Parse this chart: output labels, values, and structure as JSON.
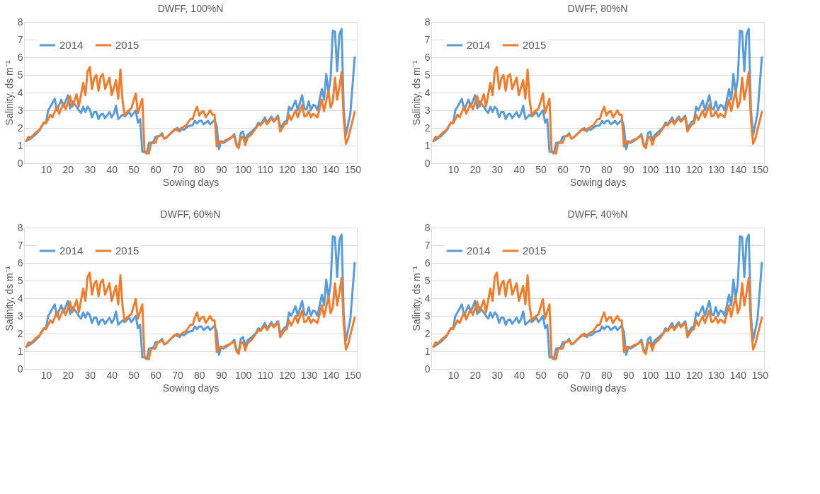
{
  "chart_data": [
    {
      "type": "line",
      "title": "DWFF, 100%N",
      "xlabel": "Sowing days",
      "ylabel": "Salinity, ds m⁻¹",
      "xlim": [
        0,
        152
      ],
      "xticks": [
        10,
        20,
        30,
        40,
        50,
        60,
        70,
        80,
        90,
        100,
        110,
        120,
        130,
        140,
        150
      ],
      "ylim": [
        0,
        8
      ],
      "yticks": [
        0,
        1,
        2,
        3,
        4,
        5,
        6,
        7,
        8
      ],
      "grid": "y",
      "legend": "top left",
      "marker": "none",
      "line_style": "solid",
      "series": [
        {
          "name": "2014",
          "color": "#5b9bd5",
          "x": [
            1,
            3,
            5,
            7,
            9,
            10,
            11,
            12,
            14,
            15,
            17,
            18,
            20,
            21,
            22,
            24,
            25,
            26,
            27,
            28,
            29,
            30,
            31,
            32,
            33,
            34,
            35,
            36,
            37,
            39,
            40,
            41,
            42,
            43,
            45,
            46,
            48,
            49,
            51,
            52,
            53,
            54,
            55,
            56,
            57,
            59,
            60,
            62,
            63,
            64,
            65,
            67,
            70,
            71,
            72,
            73,
            75,
            77,
            78,
            79,
            80,
            81,
            82,
            84,
            85,
            87,
            88,
            89,
            90,
            91,
            93,
            95,
            96,
            97,
            98,
            99,
            100,
            101,
            102,
            104,
            106,
            107,
            108,
            110,
            111,
            113,
            114,
            116,
            117,
            119,
            120,
            121,
            122,
            124,
            125,
            127,
            128,
            129,
            130,
            131,
            132,
            133,
            134,
            136,
            137,
            138,
            139,
            140,
            141,
            142,
            143,
            144,
            145,
            146,
            147,
            149,
            151
          ],
          "values": [
            1.25,
            1.4,
            1.6,
            1.85,
            2.3,
            2.3,
            3.0,
            3.2,
            3.65,
            3.0,
            3.6,
            3.2,
            3.85,
            3.1,
            3.5,
            3.2,
            3.0,
            2.85,
            3.2,
            2.9,
            3.2,
            3.05,
            2.6,
            2.9,
            2.9,
            2.5,
            2.75,
            2.8,
            2.55,
            2.9,
            2.6,
            2.8,
            3.25,
            2.5,
            2.75,
            2.65,
            2.9,
            2.65,
            3.0,
            2.3,
            2.5,
            0.65,
            0.65,
            0.55,
            1.15,
            1.2,
            1.5,
            1.55,
            1.7,
            1.4,
            1.45,
            1.7,
            2.0,
            1.8,
            1.95,
            1.9,
            2.1,
            2.15,
            2.4,
            2.25,
            2.4,
            2.4,
            2.2,
            2.4,
            2.2,
            2.45,
            2.1,
            0.8,
            1.25,
            1.15,
            1.3,
            1.5,
            1.65,
            1.1,
            1.0,
            1.7,
            1.8,
            1.3,
            1.6,
            1.8,
            2.05,
            2.3,
            2.2,
            2.6,
            2.3,
            2.65,
            2.4,
            2.7,
            2.0,
            2.35,
            2.4,
            3.2,
            3.0,
            3.55,
            3.0,
            3.85,
            3.1,
            3.05,
            3.5,
            3.0,
            3.3,
            3.25,
            3.0,
            4.2,
            3.6,
            5.05,
            4.0,
            4.8,
            7.5,
            7.45,
            5.2,
            7.3,
            7.6,
            3.0,
            1.6,
            2.8,
            6.0
          ]
        },
        {
          "name": "2015",
          "color": "#ed7d31",
          "x": [
            1,
            2,
            3,
            5,
            7,
            9,
            10,
            12,
            13,
            15,
            16,
            18,
            19,
            21,
            22,
            24,
            25,
            27,
            28,
            29,
            30,
            31,
            32,
            33,
            34,
            35,
            36,
            37,
            39,
            40,
            42,
            43,
            44,
            45,
            46,
            47,
            49,
            51,
            52,
            54,
            55,
            56,
            57,
            58,
            60,
            61,
            63,
            64,
            65,
            67,
            69,
            70,
            72,
            74,
            76,
            77,
            78,
            79,
            80,
            81,
            82,
            83,
            85,
            86,
            87,
            88,
            89,
            90,
            92,
            94,
            96,
            97,
            98,
            99,
            100,
            101,
            102,
            104,
            106,
            107,
            108,
            110,
            111,
            113,
            114,
            116,
            117,
            119,
            120,
            121,
            122,
            124,
            125,
            127,
            128,
            129,
            130,
            131,
            132,
            134,
            136,
            137,
            139,
            140,
            141,
            142,
            143,
            144,
            145,
            146,
            147,
            148,
            149,
            151
          ],
          "values": [
            1.25,
            1.5,
            1.45,
            1.7,
            1.9,
            2.3,
            2.25,
            2.75,
            2.6,
            3.2,
            2.8,
            3.4,
            3.05,
            3.8,
            3.2,
            3.9,
            3.2,
            4.55,
            3.85,
            5.2,
            5.45,
            4.2,
            4.8,
            5.0,
            4.1,
            4.9,
            5.05,
            4.2,
            4.85,
            3.85,
            4.7,
            3.65,
            5.3,
            3.5,
            2.7,
            2.9,
            3.1,
            3.95,
            2.85,
            3.65,
            0.65,
            0.65,
            0.55,
            1.15,
            1.15,
            1.5,
            1.6,
            1.4,
            1.45,
            1.7,
            1.95,
            1.85,
            2.0,
            2.15,
            2.5,
            2.5,
            2.9,
            3.2,
            2.7,
            2.9,
            2.95,
            2.6,
            3.0,
            2.75,
            2.75,
            0.95,
            1.25,
            1.15,
            1.3,
            1.4,
            1.55,
            1.0,
            0.85,
            1.45,
            1.5,
            1.05,
            1.45,
            1.65,
            2.0,
            2.2,
            2.15,
            2.45,
            2.2,
            2.55,
            2.35,
            2.6,
            1.8,
            2.2,
            2.25,
            2.75,
            2.45,
            3.0,
            2.6,
            3.3,
            2.65,
            2.7,
            2.95,
            2.6,
            2.8,
            2.6,
            3.6,
            2.95,
            4.1,
            3.15,
            3.5,
            4.85,
            3.6,
            4.3,
            5.15,
            2.5,
            1.1,
            1.4,
            1.9,
            2.9
          ]
        }
      ]
    },
    {
      "type": "line",
      "title": "DWFF, 80%N",
      "xlabel": "Sowing days",
      "ylabel": "Salinity, ds m⁻¹",
      "xlim": [
        0,
        152
      ],
      "xticks": [
        10,
        20,
        30,
        40,
        50,
        60,
        70,
        80,
        90,
        100,
        110,
        120,
        130,
        140,
        150
      ],
      "ylim": [
        0,
        8
      ],
      "yticks": [
        0,
        1,
        2,
        3,
        4,
        5,
        6,
        7,
        8
      ],
      "grid": "y",
      "legend": "top left",
      "marker": "none",
      "line_style": "solid",
      "series": [
        {
          "name": "2014",
          "color": "#5b9bd5",
          "x": [
            1,
            3,
            5,
            7,
            9,
            10,
            11,
            12,
            14,
            15,
            17,
            18,
            20,
            21,
            22,
            24,
            25,
            26,
            27,
            28,
            29,
            30,
            31,
            32,
            33,
            34,
            35,
            36,
            37,
            39,
            40,
            41,
            42,
            43,
            45,
            46,
            48,
            49,
            51,
            52,
            53,
            54,
            55,
            56,
            57,
            59,
            60,
            62,
            63,
            64,
            65,
            67,
            70,
            71,
            72,
            73,
            75,
            77,
            78,
            79,
            80,
            81,
            82,
            84,
            85,
            87,
            88,
            89,
            90,
            91,
            93,
            95,
            96,
            97,
            98,
            99,
            100,
            101,
            102,
            104,
            106,
            107,
            108,
            110,
            111,
            113,
            114,
            116,
            117,
            119,
            120,
            121,
            122,
            124,
            125,
            127,
            128,
            129,
            130,
            131,
            132,
            133,
            134,
            136,
            137,
            138,
            139,
            140,
            141,
            142,
            143,
            144,
            145,
            146,
            147,
            149,
            151
          ],
          "values": [
            1.25,
            1.4,
            1.6,
            1.85,
            2.3,
            2.3,
            3.0,
            3.2,
            3.65,
            3.0,
            3.6,
            3.2,
            3.85,
            3.1,
            3.5,
            3.2,
            3.0,
            2.85,
            3.2,
            2.9,
            3.2,
            3.05,
            2.6,
            2.9,
            2.9,
            2.5,
            2.75,
            2.8,
            2.55,
            2.9,
            2.6,
            2.8,
            3.25,
            2.5,
            2.75,
            2.65,
            2.9,
            2.65,
            3.0,
            2.3,
            2.5,
            0.65,
            0.65,
            0.55,
            1.15,
            1.2,
            1.5,
            1.55,
            1.7,
            1.4,
            1.45,
            1.7,
            2.0,
            1.8,
            1.95,
            1.9,
            2.1,
            2.15,
            2.4,
            2.25,
            2.4,
            2.4,
            2.2,
            2.4,
            2.2,
            2.45,
            2.1,
            0.8,
            1.25,
            1.15,
            1.3,
            1.5,
            1.65,
            1.1,
            1.0,
            1.7,
            1.8,
            1.3,
            1.6,
            1.8,
            2.05,
            2.3,
            2.2,
            2.6,
            2.3,
            2.65,
            2.4,
            2.7,
            2.0,
            2.35,
            2.4,
            3.2,
            3.0,
            3.55,
            3.0,
            3.85,
            3.1,
            3.05,
            3.5,
            3.0,
            3.3,
            3.25,
            3.0,
            4.2,
            3.6,
            5.05,
            4.0,
            4.8,
            7.5,
            7.45,
            5.2,
            7.3,
            7.6,
            3.0,
            1.6,
            2.8,
            6.0
          ]
        },
        {
          "name": "2015",
          "color": "#ed7d31",
          "x": [
            1,
            2,
            3,
            5,
            7,
            9,
            10,
            12,
            13,
            15,
            16,
            18,
            19,
            21,
            22,
            24,
            25,
            27,
            28,
            29,
            30,
            31,
            32,
            33,
            34,
            35,
            36,
            37,
            39,
            40,
            42,
            43,
            44,
            45,
            46,
            47,
            49,
            51,
            52,
            54,
            55,
            56,
            57,
            58,
            60,
            61,
            63,
            64,
            65,
            67,
            69,
            70,
            72,
            74,
            76,
            77,
            78,
            79,
            80,
            81,
            82,
            83,
            85,
            86,
            87,
            88,
            89,
            90,
            92,
            94,
            96,
            97,
            98,
            99,
            100,
            101,
            102,
            104,
            106,
            107,
            108,
            110,
            111,
            113,
            114,
            116,
            117,
            119,
            120,
            121,
            122,
            124,
            125,
            127,
            128,
            129,
            130,
            131,
            132,
            134,
            136,
            137,
            139,
            140,
            141,
            142,
            143,
            144,
            145,
            146,
            147,
            148,
            149,
            151
          ],
          "values": [
            1.25,
            1.5,
            1.45,
            1.7,
            1.9,
            2.3,
            2.25,
            2.75,
            2.6,
            3.2,
            2.8,
            3.4,
            3.05,
            3.8,
            3.2,
            3.9,
            3.2,
            4.55,
            3.85,
            5.2,
            5.45,
            4.2,
            4.8,
            5.0,
            4.1,
            4.9,
            5.05,
            4.2,
            4.85,
            3.85,
            4.7,
            3.65,
            5.3,
            3.5,
            2.7,
            2.9,
            3.1,
            3.95,
            2.85,
            3.65,
            0.65,
            0.65,
            0.55,
            1.15,
            1.15,
            1.5,
            1.6,
            1.4,
            1.45,
            1.7,
            1.95,
            1.85,
            2.0,
            2.15,
            2.5,
            2.5,
            2.9,
            3.2,
            2.7,
            2.9,
            2.95,
            2.6,
            3.0,
            2.75,
            2.75,
            0.95,
            1.25,
            1.15,
            1.3,
            1.4,
            1.55,
            1.0,
            0.85,
            1.45,
            1.5,
            1.05,
            1.45,
            1.65,
            2.0,
            2.2,
            2.15,
            2.45,
            2.2,
            2.55,
            2.35,
            2.6,
            1.8,
            2.2,
            2.25,
            2.75,
            2.45,
            3.0,
            2.6,
            3.3,
            2.65,
            2.7,
            2.95,
            2.6,
            2.8,
            2.6,
            3.6,
            2.95,
            4.1,
            3.15,
            3.5,
            4.85,
            3.6,
            4.3,
            5.15,
            2.5,
            1.1,
            1.4,
            1.9,
            2.9
          ]
        }
      ]
    },
    {
      "type": "line",
      "title": "DWFF, 60%N",
      "xlabel": "Sowing days",
      "ylabel": "Salinity, ds m⁻¹",
      "xlim": [
        0,
        152
      ],
      "xticks": [
        10,
        20,
        30,
        40,
        50,
        60,
        70,
        80,
        90,
        100,
        110,
        120,
        130,
        140,
        150
      ],
      "ylim": [
        0,
        8
      ],
      "yticks": [
        0,
        1,
        2,
        3,
        4,
        5,
        6,
        7,
        8
      ],
      "grid": "y",
      "legend": "top left",
      "marker": "none",
      "line_style": "solid",
      "series": [
        {
          "name": "2014",
          "color": "#5b9bd5",
          "x": [
            1,
            3,
            5,
            7,
            9,
            10,
            11,
            12,
            14,
            15,
            17,
            18,
            20,
            21,
            22,
            24,
            25,
            26,
            27,
            28,
            29,
            30,
            31,
            32,
            33,
            34,
            35,
            36,
            37,
            39,
            40,
            41,
            42,
            43,
            45,
            46,
            48,
            49,
            51,
            52,
            53,
            54,
            55,
            56,
            57,
            59,
            60,
            62,
            63,
            64,
            65,
            67,
            70,
            71,
            72,
            73,
            75,
            77,
            78,
            79,
            80,
            81,
            82,
            84,
            85,
            87,
            88,
            89,
            90,
            91,
            93,
            95,
            96,
            97,
            98,
            99,
            100,
            101,
            102,
            104,
            106,
            107,
            108,
            110,
            111,
            113,
            114,
            116,
            117,
            119,
            120,
            121,
            122,
            124,
            125,
            127,
            128,
            129,
            130,
            131,
            132,
            133,
            134,
            136,
            137,
            138,
            139,
            140,
            141,
            142,
            143,
            144,
            145,
            146,
            147,
            149,
            151
          ],
          "values": [
            1.25,
            1.4,
            1.6,
            1.85,
            2.3,
            2.3,
            3.0,
            3.2,
            3.65,
            3.0,
            3.6,
            3.2,
            3.85,
            3.1,
            3.5,
            3.2,
            3.0,
            2.85,
            3.2,
            2.9,
            3.2,
            3.05,
            2.6,
            2.9,
            2.9,
            2.5,
            2.75,
            2.8,
            2.55,
            2.9,
            2.6,
            2.8,
            3.25,
            2.5,
            2.75,
            2.65,
            2.9,
            2.65,
            3.0,
            2.3,
            2.5,
            0.65,
            0.65,
            0.55,
            1.15,
            1.2,
            1.5,
            1.55,
            1.7,
            1.4,
            1.45,
            1.7,
            2.0,
            1.8,
            1.95,
            1.9,
            2.1,
            2.15,
            2.4,
            2.25,
            2.4,
            2.4,
            2.2,
            2.4,
            2.2,
            2.45,
            2.1,
            0.8,
            1.25,
            1.15,
            1.3,
            1.5,
            1.65,
            1.1,
            1.0,
            1.7,
            1.8,
            1.3,
            1.6,
            1.8,
            2.05,
            2.3,
            2.2,
            2.6,
            2.3,
            2.65,
            2.4,
            2.7,
            2.0,
            2.35,
            2.4,
            3.2,
            3.0,
            3.55,
            3.0,
            3.85,
            3.1,
            3.05,
            3.5,
            3.0,
            3.3,
            3.25,
            3.0,
            4.2,
            3.6,
            5.05,
            4.0,
            4.8,
            7.5,
            7.45,
            5.2,
            7.3,
            7.6,
            3.0,
            1.6,
            2.8,
            6.0
          ]
        },
        {
          "name": "2015",
          "color": "#ed7d31",
          "x": [
            1,
            2,
            3,
            5,
            7,
            9,
            10,
            12,
            13,
            15,
            16,
            18,
            19,
            21,
            22,
            24,
            25,
            27,
            28,
            29,
            30,
            31,
            32,
            33,
            34,
            35,
            36,
            37,
            39,
            40,
            42,
            43,
            44,
            45,
            46,
            47,
            49,
            51,
            52,
            54,
            55,
            56,
            57,
            58,
            60,
            61,
            63,
            64,
            65,
            67,
            69,
            70,
            72,
            74,
            76,
            77,
            78,
            79,
            80,
            81,
            82,
            83,
            85,
            86,
            87,
            88,
            89,
            90,
            92,
            94,
            96,
            97,
            98,
            99,
            100,
            101,
            102,
            104,
            106,
            107,
            108,
            110,
            111,
            113,
            114,
            116,
            117,
            119,
            120,
            121,
            122,
            124,
            125,
            127,
            128,
            129,
            130,
            131,
            132,
            134,
            136,
            137,
            139,
            140,
            141,
            142,
            143,
            144,
            145,
            146,
            147,
            148,
            149,
            151
          ],
          "values": [
            1.25,
            1.5,
            1.45,
            1.7,
            1.9,
            2.3,
            2.25,
            2.75,
            2.6,
            3.2,
            2.8,
            3.4,
            3.05,
            3.8,
            3.2,
            3.9,
            3.2,
            4.55,
            3.85,
            5.2,
            5.45,
            4.2,
            4.8,
            5.0,
            4.1,
            4.9,
            5.05,
            4.2,
            4.85,
            3.85,
            4.7,
            3.65,
            5.3,
            3.5,
            2.7,
            2.9,
            3.1,
            3.95,
            2.85,
            3.65,
            0.65,
            0.65,
            0.55,
            1.15,
            1.15,
            1.5,
            1.6,
            1.4,
            1.45,
            1.7,
            1.95,
            1.85,
            2.0,
            2.15,
            2.5,
            2.5,
            2.9,
            3.2,
            2.7,
            2.9,
            2.95,
            2.6,
            3.0,
            2.75,
            2.75,
            0.95,
            1.25,
            1.15,
            1.3,
            1.4,
            1.55,
            1.0,
            0.85,
            1.45,
            1.5,
            1.05,
            1.45,
            1.65,
            2.0,
            2.2,
            2.15,
            2.45,
            2.2,
            2.55,
            2.35,
            2.6,
            1.8,
            2.2,
            2.25,
            2.75,
            2.45,
            3.0,
            2.6,
            3.3,
            2.65,
            2.7,
            2.95,
            2.6,
            2.8,
            2.6,
            3.6,
            2.95,
            4.1,
            3.15,
            3.5,
            4.85,
            3.6,
            4.3,
            5.15,
            2.5,
            1.1,
            1.4,
            1.9,
            2.9
          ]
        }
      ]
    },
    {
      "type": "line",
      "title": "DWFF, 40%N",
      "xlabel": "Sowing days",
      "ylabel": "Salinity, ds m⁻¹",
      "xlim": [
        0,
        152
      ],
      "xticks": [
        10,
        20,
        30,
        40,
        50,
        60,
        70,
        80,
        90,
        100,
        110,
        120,
        130,
        140,
        150
      ],
      "ylim": [
        0,
        8
      ],
      "yticks": [
        0,
        1,
        2,
        3,
        4,
        5,
        6,
        7,
        8
      ],
      "grid": "y",
      "legend": "top left",
      "marker": "none",
      "line_style": "solid",
      "series": [
        {
          "name": "2014",
          "color": "#5b9bd5",
          "x": [
            1,
            3,
            5,
            7,
            9,
            10,
            11,
            12,
            14,
            15,
            17,
            18,
            20,
            21,
            22,
            24,
            25,
            26,
            27,
            28,
            29,
            30,
            31,
            32,
            33,
            34,
            35,
            36,
            37,
            39,
            40,
            41,
            42,
            43,
            45,
            46,
            48,
            49,
            51,
            52,
            53,
            54,
            55,
            56,
            57,
            59,
            60,
            62,
            63,
            64,
            65,
            67,
            70,
            71,
            72,
            73,
            75,
            77,
            78,
            79,
            80,
            81,
            82,
            84,
            85,
            87,
            88,
            89,
            90,
            91,
            93,
            95,
            96,
            97,
            98,
            99,
            100,
            101,
            102,
            104,
            106,
            107,
            108,
            110,
            111,
            113,
            114,
            116,
            117,
            119,
            120,
            121,
            122,
            124,
            125,
            127,
            128,
            129,
            130,
            131,
            132,
            133,
            134,
            136,
            137,
            138,
            139,
            140,
            141,
            142,
            143,
            144,
            145,
            146,
            147,
            149,
            151
          ],
          "values": [
            1.25,
            1.4,
            1.6,
            1.85,
            2.3,
            2.3,
            3.0,
            3.2,
            3.65,
            3.0,
            3.6,
            3.2,
            3.85,
            3.1,
            3.5,
            3.2,
            3.0,
            2.85,
            3.2,
            2.9,
            3.2,
            3.05,
            2.6,
            2.9,
            2.9,
            2.5,
            2.75,
            2.8,
            2.55,
            2.9,
            2.6,
            2.8,
            3.25,
            2.5,
            2.75,
            2.65,
            2.9,
            2.65,
            3.0,
            2.3,
            2.5,
            0.65,
            0.65,
            0.55,
            1.15,
            1.2,
            1.5,
            1.55,
            1.7,
            1.4,
            1.45,
            1.7,
            2.0,
            1.8,
            1.95,
            1.9,
            2.1,
            2.15,
            2.4,
            2.25,
            2.4,
            2.4,
            2.2,
            2.4,
            2.2,
            2.45,
            2.1,
            0.8,
            1.25,
            1.15,
            1.3,
            1.5,
            1.65,
            1.1,
            1.0,
            1.7,
            1.8,
            1.3,
            1.6,
            1.8,
            2.05,
            2.3,
            2.2,
            2.6,
            2.3,
            2.65,
            2.4,
            2.7,
            2.0,
            2.35,
            2.4,
            3.2,
            3.0,
            3.55,
            3.0,
            3.85,
            3.1,
            3.05,
            3.5,
            3.0,
            3.3,
            3.25,
            3.0,
            4.2,
            3.6,
            5.05,
            4.0,
            4.8,
            7.5,
            7.45,
            5.2,
            7.3,
            7.6,
            3.0,
            1.6,
            2.8,
            6.0
          ]
        },
        {
          "name": "2015",
          "color": "#ed7d31",
          "x": [
            1,
            2,
            3,
            5,
            7,
            9,
            10,
            12,
            13,
            15,
            16,
            18,
            19,
            21,
            22,
            24,
            25,
            27,
            28,
            29,
            30,
            31,
            32,
            33,
            34,
            35,
            36,
            37,
            39,
            40,
            42,
            43,
            44,
            45,
            46,
            47,
            49,
            51,
            52,
            54,
            55,
            56,
            57,
            58,
            60,
            61,
            63,
            64,
            65,
            67,
            69,
            70,
            72,
            74,
            76,
            77,
            78,
            79,
            80,
            81,
            82,
            83,
            85,
            86,
            87,
            88,
            89,
            90,
            92,
            94,
            96,
            97,
            98,
            99,
            100,
            101,
            102,
            104,
            106,
            107,
            108,
            110,
            111,
            113,
            114,
            116,
            117,
            119,
            120,
            121,
            122,
            124,
            125,
            127,
            128,
            129,
            130,
            131,
            132,
            134,
            136,
            137,
            139,
            140,
            141,
            142,
            143,
            144,
            145,
            146,
            147,
            148,
            149,
            151
          ],
          "values": [
            1.25,
            1.5,
            1.45,
            1.7,
            1.9,
            2.3,
            2.25,
            2.75,
            2.6,
            3.2,
            2.8,
            3.4,
            3.05,
            3.8,
            3.2,
            3.9,
            3.2,
            4.55,
            3.85,
            5.2,
            5.45,
            4.2,
            4.8,
            5.0,
            4.1,
            4.9,
            5.05,
            4.2,
            4.85,
            3.85,
            4.7,
            3.65,
            5.3,
            3.5,
            2.7,
            2.9,
            3.1,
            3.95,
            2.85,
            3.65,
            0.65,
            0.65,
            0.55,
            1.15,
            1.15,
            1.5,
            1.6,
            1.4,
            1.45,
            1.7,
            1.95,
            1.85,
            2.0,
            2.15,
            2.5,
            2.5,
            2.9,
            3.2,
            2.7,
            2.9,
            2.95,
            2.6,
            3.0,
            2.75,
            2.75,
            0.95,
            1.25,
            1.15,
            1.3,
            1.4,
            1.55,
            1.0,
            0.85,
            1.45,
            1.5,
            1.05,
            1.45,
            1.65,
            2.0,
            2.2,
            2.15,
            2.45,
            2.2,
            2.55,
            2.35,
            2.6,
            1.8,
            2.2,
            2.25,
            2.75,
            2.45,
            3.0,
            2.6,
            3.3,
            2.65,
            2.7,
            2.95,
            2.6,
            2.8,
            2.6,
            3.6,
            2.95,
            4.1,
            3.15,
            3.5,
            4.85,
            3.6,
            4.3,
            5.15,
            2.5,
            1.1,
            1.4,
            1.9,
            2.9
          ]
        }
      ]
    }
  ]
}
